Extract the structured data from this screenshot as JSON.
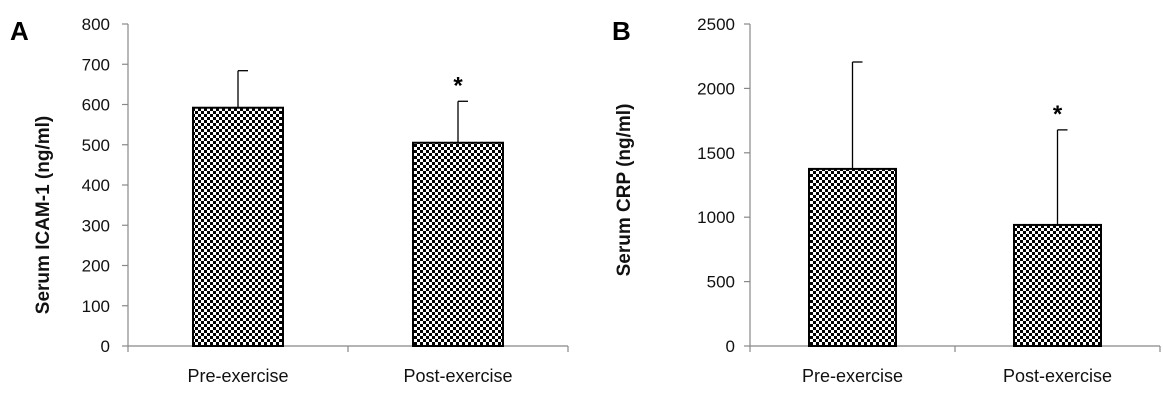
{
  "chart_data": [
    {
      "type": "bar",
      "panel_label": "A",
      "categories": [
        "Pre-exercise",
        "Post-exercise"
      ],
      "values": [
        592,
        505
      ],
      "error_plus": [
        92,
        103
      ],
      "significance": [
        "",
        "*"
      ],
      "ylabel": "Serum ICAM-1 (ng/ml)",
      "xlabel": "",
      "ylim": [
        0,
        800
      ],
      "yticks": [
        0,
        100,
        200,
        300,
        400,
        500,
        600,
        700,
        800
      ],
      "grid": false,
      "bar_fill": "checkerboard"
    },
    {
      "type": "bar",
      "panel_label": "B",
      "categories": [
        "Pre-exercise",
        "Post-exercise"
      ],
      "values": [
        1375,
        940
      ],
      "error_plus": [
        830,
        738
      ],
      "significance": [
        "",
        "*"
      ],
      "ylabel": "Serum CRP (ng/ml)",
      "xlabel": "",
      "ylim": [
        0,
        2500
      ],
      "yticks": [
        0,
        500,
        1000,
        1500,
        2000,
        2500
      ],
      "grid": false,
      "bar_fill": "checkerboard"
    }
  ],
  "colors": {
    "bar": "#000000",
    "background": "#ffffff",
    "axis": "#888888"
  }
}
